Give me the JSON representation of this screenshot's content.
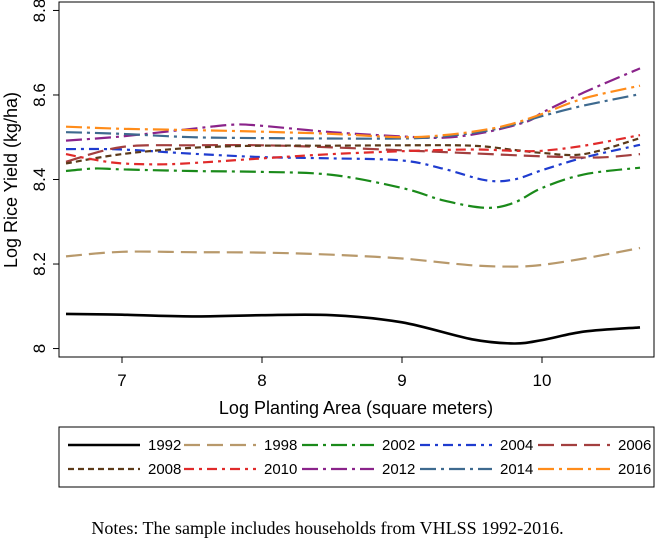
{
  "chart_data": {
    "type": "line",
    "title": "",
    "xlabel": "Log Planting Area (square meters)",
    "ylabel": "Log Rice Yield (kg/ha)",
    "xlim": [
      6.55,
      10.8
    ],
    "ylim": [
      7.98,
      8.82
    ],
    "xticks": [
      7,
      8,
      9,
      10
    ],
    "yticks": [
      8,
      8.2,
      8.4,
      8.6,
      8.8
    ],
    "ytick_labels": [
      "8",
      "8.2",
      "8.4",
      "8.6",
      "8.8"
    ],
    "grid": false,
    "legend_position": "bottom",
    "series": [
      {
        "name": "1992",
        "color": "#000000",
        "dash": "solid",
        "x": [
          6.6,
          7.0,
          7.5,
          8.0,
          8.5,
          9.0,
          9.5,
          9.8,
          10.0,
          10.3,
          10.7
        ],
        "y": [
          8.082,
          8.08,
          8.076,
          8.079,
          8.079,
          8.062,
          8.022,
          8.012,
          8.02,
          8.04,
          8.05
        ]
      },
      {
        "name": "1998",
        "color": "#b8996b",
        "dash": "longdash",
        "x": [
          6.6,
          7.0,
          7.5,
          8.0,
          8.5,
          9.0,
          9.5,
          9.8,
          10.0,
          10.3,
          10.7
        ],
        "y": [
          8.218,
          8.229,
          8.228,
          8.227,
          8.222,
          8.213,
          8.197,
          8.194,
          8.198,
          8.213,
          8.238
        ]
      },
      {
        "name": "2002",
        "color": "#1a8a1a",
        "dash": "longdashdot",
        "x": [
          6.6,
          6.8,
          7.0,
          7.5,
          8.0,
          8.5,
          9.0,
          9.3,
          9.6,
          9.8,
          10.0,
          10.3,
          10.7
        ],
        "y": [
          8.42,
          8.426,
          8.424,
          8.42,
          8.418,
          8.411,
          8.38,
          8.35,
          8.333,
          8.345,
          8.38,
          8.412,
          8.428
        ]
      },
      {
        "name": "2004",
        "color": "#1f3ccf",
        "dash": "dashdot",
        "x": [
          6.6,
          7.0,
          7.5,
          8.0,
          8.5,
          9.0,
          9.3,
          9.6,
          9.8,
          10.0,
          10.3,
          10.7
        ],
        "y": [
          8.472,
          8.471,
          8.461,
          8.453,
          8.45,
          8.445,
          8.425,
          8.398,
          8.4,
          8.422,
          8.452,
          8.482
        ]
      },
      {
        "name": "2006",
        "color": "#a33f3f",
        "dash": "longdash",
        "x": [
          6.6,
          7.0,
          7.5,
          8.0,
          8.5,
          9.0,
          9.5,
          10.0,
          10.4,
          10.7
        ],
        "y": [
          8.442,
          8.477,
          8.481,
          8.481,
          8.476,
          8.469,
          8.462,
          8.455,
          8.452,
          8.46
        ]
      },
      {
        "name": "2008",
        "color": "#5c3a1a",
        "dash": "shortdash",
        "x": [
          6.6,
          7.0,
          7.5,
          8.0,
          8.5,
          9.0,
          9.5,
          9.8,
          10.0,
          10.3,
          10.7
        ],
        "y": [
          8.438,
          8.46,
          8.475,
          8.48,
          8.48,
          8.481,
          8.48,
          8.47,
          8.463,
          8.46,
          8.498
        ]
      },
      {
        "name": "2010",
        "color": "#e02a2a",
        "dash": "dashdot",
        "x": [
          6.6,
          6.8,
          7.0,
          7.3,
          7.6,
          8.0,
          8.5,
          9.0,
          9.5,
          9.8,
          10.0,
          10.3,
          10.7
        ],
        "y": [
          8.46,
          8.447,
          8.438,
          8.436,
          8.441,
          8.45,
          8.46,
          8.467,
          8.471,
          8.468,
          8.468,
          8.48,
          8.505
        ]
      },
      {
        "name": "2012",
        "color": "#8a238a",
        "dash": "longdashdot",
        "x": [
          6.6,
          7.0,
          7.5,
          7.8,
          8.0,
          8.5,
          9.0,
          9.3,
          9.6,
          9.9,
          10.0,
          10.3,
          10.7
        ],
        "y": [
          8.492,
          8.502,
          8.52,
          8.53,
          8.527,
          8.512,
          8.502,
          8.499,
          8.512,
          8.538,
          8.558,
          8.606,
          8.663
        ]
      },
      {
        "name": "2014",
        "color": "#3e6a8f",
        "dash": "longdashdot",
        "x": [
          6.6,
          7.0,
          7.5,
          8.0,
          8.5,
          9.0,
          9.3,
          9.6,
          9.8,
          10.0,
          10.3,
          10.7
        ],
        "y": [
          8.512,
          8.508,
          8.5,
          8.498,
          8.497,
          8.497,
          8.502,
          8.515,
          8.53,
          8.55,
          8.575,
          8.602
        ]
      },
      {
        "name": "2016",
        "color": "#ff8c1a",
        "dash": "longdashdot",
        "x": [
          6.6,
          7.0,
          7.5,
          8.0,
          8.5,
          9.0,
          9.3,
          9.6,
          9.8,
          10.0,
          10.3,
          10.7
        ],
        "y": [
          8.525,
          8.52,
          8.517,
          8.513,
          8.508,
          8.5,
          8.505,
          8.518,
          8.533,
          8.555,
          8.592,
          8.622
        ]
      }
    ]
  },
  "note": "Notes: The sample includes households from VHLSS 1992-2016."
}
